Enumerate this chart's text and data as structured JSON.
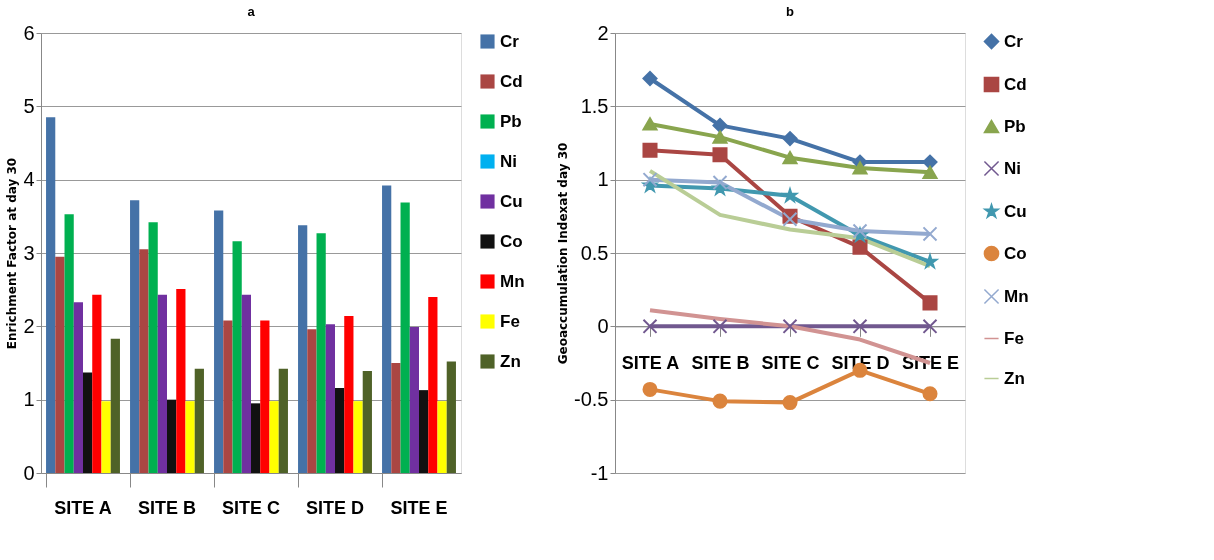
{
  "chart_data": [
    {
      "type": "bar",
      "title": "a",
      "ylabel": "Enrichment Factor at day 30",
      "categories": [
        "SITE A",
        "SITE B",
        "SITE C",
        "SITE D",
        "SITE E"
      ],
      "ylim": [
        0,
        6
      ],
      "yticks": [
        0,
        1,
        2,
        3,
        4,
        5,
        6
      ],
      "grid": "y",
      "legend": "right",
      "series": [
        {
          "name": "Cr",
          "color": "#4572a7",
          "values": [
            4.85,
            3.72,
            3.58,
            3.38,
            3.92
          ]
        },
        {
          "name": "Cd",
          "color": "#aa4643",
          "values": [
            2.95,
            3.05,
            2.08,
            1.96,
            1.5
          ]
        },
        {
          "name": "Pb",
          "color": "#00b050",
          "values": [
            3.53,
            3.42,
            3.16,
            3.27,
            3.69
          ]
        },
        {
          "name": "Ni",
          "color": "#00b0f0",
          "values": [
            null,
            null,
            null,
            null,
            null
          ]
        },
        {
          "name": "Cu",
          "color": "#7030a0",
          "values": [
            2.33,
            2.43,
            2.43,
            2.03,
            1.99
          ]
        },
        {
          "name": "Co",
          "color": "#111111",
          "values": [
            1.37,
            1.0,
            0.95,
            1.16,
            1.13
          ]
        },
        {
          "name": "Mn",
          "color": "#ff0000",
          "values": [
            2.43,
            2.51,
            2.08,
            2.14,
            2.4
          ]
        },
        {
          "name": "Fe",
          "color": "#ffff00",
          "values": [
            0.98,
            0.98,
            0.98,
            0.98,
            0.98
          ]
        },
        {
          "name": "Zn",
          "color": "#4f6228",
          "values": [
            1.83,
            1.42,
            1.42,
            1.39,
            1.52
          ]
        }
      ]
    },
    {
      "type": "line",
      "title": "b",
      "ylabel": "Geoaccumulation Indexat day 30",
      "categories": [
        "SITE A",
        "SITE B",
        "SITE C",
        "SITE D",
        "SITE E"
      ],
      "ylim": [
        -1,
        2
      ],
      "yticks": [
        -1,
        -0.5,
        0,
        0.5,
        1,
        1.5,
        2
      ],
      "grid": "y",
      "legend": "right",
      "line_style": "solid",
      "series": [
        {
          "name": "Cr",
          "color": "#4572a7",
          "marker": "diamond",
          "values": [
            1.69,
            1.37,
            1.28,
            1.12,
            1.12
          ]
        },
        {
          "name": "Cd",
          "color": "#aa4643",
          "marker": "square",
          "values": [
            1.2,
            1.17,
            0.75,
            0.54,
            0.16
          ]
        },
        {
          "name": "Pb",
          "color": "#89a54e",
          "marker": "triangle",
          "values": [
            1.38,
            1.29,
            1.15,
            1.08,
            1.05
          ]
        },
        {
          "name": "Ni",
          "color": "#71588f",
          "marker": "cross",
          "values": [
            0,
            0,
            0,
            0,
            0
          ]
        },
        {
          "name": "Cu",
          "color": "#4198af",
          "marker": "star",
          "values": [
            0.96,
            0.94,
            0.89,
            0.62,
            0.44
          ]
        },
        {
          "name": "Co",
          "color": "#db843d",
          "marker": "circle",
          "values": [
            -0.43,
            -0.51,
            -0.52,
            -0.3,
            -0.46
          ]
        },
        {
          "name": "Mn",
          "color": "#93a9cf",
          "marker": "cross",
          "values": [
            1.0,
            0.98,
            0.73,
            0.65,
            0.63
          ]
        },
        {
          "name": "Fe",
          "color": "#d19392",
          "marker": "none",
          "values": [
            0.11,
            0.05,
            0.0,
            -0.09,
            -0.25
          ]
        },
        {
          "name": "Zn",
          "color": "#b9cd96",
          "marker": "none",
          "values": [
            1.06,
            0.76,
            0.66,
            0.6,
            0.41
          ]
        }
      ]
    }
  ]
}
